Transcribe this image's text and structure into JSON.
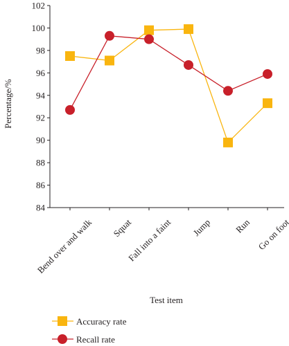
{
  "chart_data": {
    "type": "line",
    "xlabel": "Test item",
    "ylabel": "Percentage/%",
    "categories": [
      "Bend over and walk",
      "Squat",
      "Fall into a faint",
      "Jump",
      "Run",
      "Go on foot"
    ],
    "ylim": [
      84,
      102
    ],
    "yticks": [
      "84",
      "86",
      "88",
      "90",
      "92",
      "94",
      "96",
      "98",
      "100",
      "102"
    ],
    "grid": false,
    "legend_position": "bottom-left",
    "series": [
      {
        "name": "Accuracy rate",
        "marker": "square",
        "color": "#f9b50f",
        "values": [
          97.5,
          97.1,
          99.8,
          99.9,
          89.8,
          93.3
        ]
      },
      {
        "name": "Recall rate",
        "marker": "circle",
        "color": "#c8202a",
        "values": [
          92.7,
          99.3,
          99.0,
          96.7,
          94.4,
          95.9
        ]
      }
    ]
  }
}
